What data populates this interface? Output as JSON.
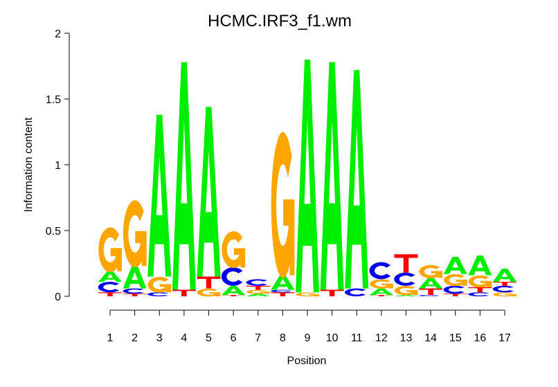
{
  "chart_data": {
    "type": "sequence-logo",
    "title": "HCMC.IRF3_f1.wm",
    "xlabel": "Position",
    "ylabel": "Information content",
    "ylim": [
      0,
      2
    ],
    "yticks": [
      "0",
      "0.5",
      "1",
      "1.5",
      "2"
    ],
    "ytick_values": [
      0,
      0.5,
      1,
      1.5,
      2
    ],
    "xticks": [
      "1",
      "2",
      "3",
      "4",
      "5",
      "6",
      "7",
      "8",
      "9",
      "10",
      "11",
      "12",
      "13",
      "14",
      "15",
      "16",
      "17"
    ],
    "colors": {
      "A": "#00ee00",
      "C": "#0000ee",
      "G": "#ffa500",
      "T": "#ff0000"
    },
    "positions": [
      [
        [
          "T",
          0.03
        ],
        [
          "C",
          0.08
        ],
        [
          "A",
          0.08
        ],
        [
          "G",
          0.34
        ]
      ],
      [
        [
          "T",
          0.02
        ],
        [
          "C",
          0.04
        ],
        [
          "A",
          0.17
        ],
        [
          "G",
          0.51
        ]
      ],
      [
        [
          "C",
          0.03
        ],
        [
          "G",
          0.12
        ],
        [
          "A",
          1.23
        ]
      ],
      [
        [
          "T",
          0.05
        ],
        [
          "A",
          1.73
        ]
      ],
      [
        [
          "G",
          0.06
        ],
        [
          "T",
          0.09
        ],
        [
          "A",
          1.29
        ]
      ],
      [
        [
          "T",
          0.01
        ],
        [
          "A",
          0.07
        ],
        [
          "C",
          0.14
        ],
        [
          "G",
          0.28
        ]
      ],
      [
        [
          "A",
          0.02
        ],
        [
          "G",
          0.03
        ],
        [
          "T",
          0.03
        ],
        [
          "C",
          0.05
        ]
      ],
      [
        [
          "T",
          0.03
        ],
        [
          "C",
          0.02
        ],
        [
          "A",
          0.11
        ],
        [
          "G",
          1.11
        ]
      ],
      [
        [
          "G",
          0.03
        ],
        [
          "A",
          1.77
        ]
      ],
      [
        [
          "T",
          0.05
        ],
        [
          "A",
          1.73
        ]
      ],
      [
        [
          "C",
          0.06
        ],
        [
          "A",
          1.66
        ]
      ],
      [
        [
          "T",
          0.01
        ],
        [
          "A",
          0.05
        ],
        [
          "G",
          0.07
        ],
        [
          "C",
          0.13
        ]
      ],
      [
        [
          "A",
          0.01
        ],
        [
          "G",
          0.07
        ],
        [
          "C",
          0.1
        ],
        [
          "T",
          0.14
        ]
      ],
      [
        [
          "C",
          0.01
        ],
        [
          "T",
          0.05
        ],
        [
          "A",
          0.08
        ],
        [
          "G",
          0.1
        ]
      ],
      [
        [
          "T",
          0.02
        ],
        [
          "C",
          0.06
        ],
        [
          "G",
          0.09
        ],
        [
          "A",
          0.13
        ]
      ],
      [
        [
          "C",
          0.03
        ],
        [
          "T",
          0.04
        ],
        [
          "G",
          0.09
        ],
        [
          "A",
          0.15
        ]
      ],
      [
        [
          "G",
          0.03
        ],
        [
          "C",
          0.05
        ],
        [
          "T",
          0.03
        ],
        [
          "A",
          0.1
        ]
      ]
    ]
  }
}
